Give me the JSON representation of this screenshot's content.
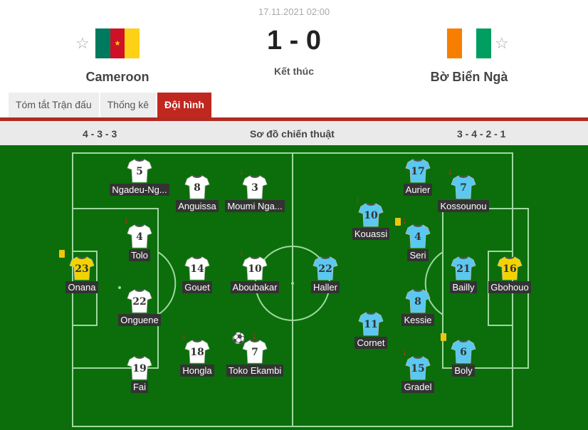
{
  "match": {
    "datetime": "17.11.2021 02:00",
    "score": "1 - 0",
    "status": "Kết thúc",
    "home": {
      "name": "Cameroon",
      "flag_colors": [
        "#007a5e",
        "#ce1126",
        "#fcd116"
      ]
    },
    "away": {
      "name": "Bờ Biển Ngà",
      "flag_colors": [
        "#f77f00",
        "#ffffff",
        "#009e60"
      ]
    }
  },
  "tabs": [
    {
      "label": "Tóm tắt Trận đấu",
      "active": false
    },
    {
      "label": "Thống kê",
      "active": false
    },
    {
      "label": "Đội hình",
      "active": true
    }
  ],
  "formation": {
    "home": "4 - 3 - 3",
    "title": "Sơ đồ chiến thuật",
    "away": "3 - 4 - 2 - 1"
  },
  "colors": {
    "accent": "#c0271f",
    "pitch": "#0b6e0b",
    "home_shirt": "#ffffff",
    "home_gk": "#f2d300",
    "away_shirt": "#5bc8f0",
    "away_gk": "#f2d300"
  },
  "home_players": [
    {
      "number": "5",
      "name": "Ngadeu-Ng..."
    },
    {
      "number": "8",
      "name": "Anguissa"
    },
    {
      "number": "3",
      "name": "Moumi Nga...",
      "sub_off": true
    },
    {
      "number": "4",
      "name": "Tolo",
      "sub_off": true
    },
    {
      "number": "23",
      "name": "Onana",
      "gk": true,
      "yellow_card": true
    },
    {
      "number": "14",
      "name": "Gouet"
    },
    {
      "number": "10",
      "name": "Aboubakar",
      "sub_off": true
    },
    {
      "number": "22",
      "name": "Onguene"
    },
    {
      "number": "18",
      "name": "Hongla",
      "sub_off": true
    },
    {
      "number": "7",
      "name": "Toko Ekambi",
      "sub_off": true,
      "goal": true
    },
    {
      "number": "19",
      "name": "Fai"
    }
  ],
  "away_players": [
    {
      "number": "17",
      "name": "Aurier"
    },
    {
      "number": "7",
      "name": "Kossounou",
      "sub_off": true
    },
    {
      "number": "10",
      "name": "Kouassi",
      "sub_off": true
    },
    {
      "number": "4",
      "name": "Seri",
      "sub_off": true,
      "yellow_card": true
    },
    {
      "number": "22",
      "name": "Haller"
    },
    {
      "number": "21",
      "name": "Bailly"
    },
    {
      "number": "16",
      "name": "Gbohouo",
      "gk": true
    },
    {
      "number": "8",
      "name": "Kessie"
    },
    {
      "number": "11",
      "name": "Cornet"
    },
    {
      "number": "15",
      "name": "Gradel",
      "sub_off": true
    },
    {
      "number": "6",
      "name": "Boly",
      "yellow_card": true
    }
  ]
}
